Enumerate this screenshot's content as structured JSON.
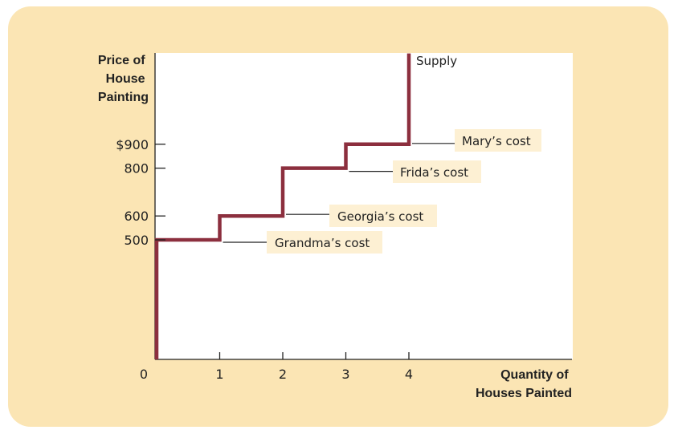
{
  "chart_data": {
    "type": "line",
    "step": true,
    "ylabel": [
      "Price of",
      "House",
      "Painting"
    ],
    "xlabel": [
      "Quantity of",
      "Houses Painted"
    ],
    "x_ticks": [
      "0",
      "1",
      "2",
      "3",
      "4"
    ],
    "y_ticks": [
      {
        "value": 900,
        "label": "$900"
      },
      {
        "value": 800,
        "label": "800"
      },
      {
        "value": 600,
        "label": "600"
      },
      {
        "value": 500,
        "label": "500"
      }
    ],
    "xlim": [
      0,
      6.8
    ],
    "ylim": [
      0,
      1280
    ],
    "series": [
      {
        "name": "Supply",
        "color": "#8c2f3e",
        "points": [
          [
            0,
            0
          ],
          [
            0,
            500
          ],
          [
            1,
            500
          ],
          [
            1,
            600
          ],
          [
            2,
            600
          ],
          [
            2,
            800
          ],
          [
            3,
            800
          ],
          [
            3,
            900
          ],
          [
            4,
            900
          ],
          [
            4,
            1280
          ]
        ]
      }
    ],
    "annotations": [
      {
        "text": "Mary’s cost",
        "x": 4,
        "y": 900
      },
      {
        "text": "Frida’s cost",
        "x": 3,
        "y": 800
      },
      {
        "text": "Georgia’s cost",
        "x": 2,
        "y": 600
      },
      {
        "text": "Grandma’s cost",
        "x": 1,
        "y": 500
      }
    ],
    "grid": false,
    "colors": {
      "panel": "#fbe5b4",
      "plot": "#ffffff",
      "label_box": "#fdf0d3",
      "line": "#8c2f3e"
    }
  }
}
